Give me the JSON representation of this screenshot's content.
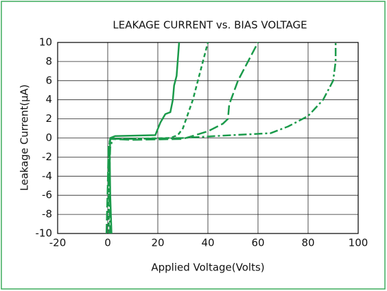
{
  "chart_data": {
    "type": "line",
    "title": "LEAKAGE CURRENT vs. BIAS VOLTAGE",
    "xlabel": "Applied Voltage(Volts)",
    "ylabel": "Leakage Current(μA)",
    "xlim": [
      -20,
      100
    ],
    "xticks": [
      -20,
      0,
      20,
      40,
      60,
      80,
      100
    ],
    "ylim": [
      -10,
      10
    ],
    "yticks": [
      -10,
      -8,
      -6,
      -4,
      -2,
      0,
      2,
      4,
      6,
      8,
      10
    ],
    "grid": true,
    "series": [
      {
        "color": "#1a9a4a",
        "linestyle": "solid",
        "x": [
          1.5,
          1,
          0.8,
          1,
          3,
          19,
          21,
          23,
          25,
          26,
          26.5,
          27.5,
          28.5
        ],
        "values": [
          -10,
          -6,
          -2,
          0,
          0.2,
          0.3,
          1.6,
          2.5,
          2.7,
          4,
          5.5,
          6.5,
          10
        ]
      },
      {
        "color": "#1a9a4a",
        "linestyle": "dashed",
        "x": [
          0.5,
          0.3,
          0.5,
          1,
          5,
          25,
          28,
          30,
          32,
          34,
          36,
          38,
          40
        ],
        "values": [
          -10,
          -5,
          -1,
          0,
          -0.1,
          0,
          0.3,
          1,
          2.5,
          4,
          6,
          8,
          10
        ]
      },
      {
        "color": "#1a9a4a",
        "linestyle": "longdash",
        "x": [
          -0.5,
          0,
          0.3,
          1,
          10,
          30,
          40,
          46,
          48,
          48.5,
          52,
          56,
          60
        ],
        "values": [
          -10,
          -5,
          -1,
          -0.1,
          -0.2,
          -0.1,
          0.7,
          1.5,
          2,
          3.5,
          6,
          8,
          10
        ]
      },
      {
        "color": "#1a9a4a",
        "linestyle": "dashdot",
        "x": [
          1,
          0.5,
          1,
          2,
          10,
          30,
          50,
          65,
          72,
          80,
          86,
          90,
          91,
          91
        ],
        "values": [
          -10,
          -5,
          -1,
          -0.1,
          -0.1,
          0,
          0.3,
          0.5,
          1.2,
          2.3,
          4,
          6,
          8,
          10
        ]
      }
    ]
  }
}
